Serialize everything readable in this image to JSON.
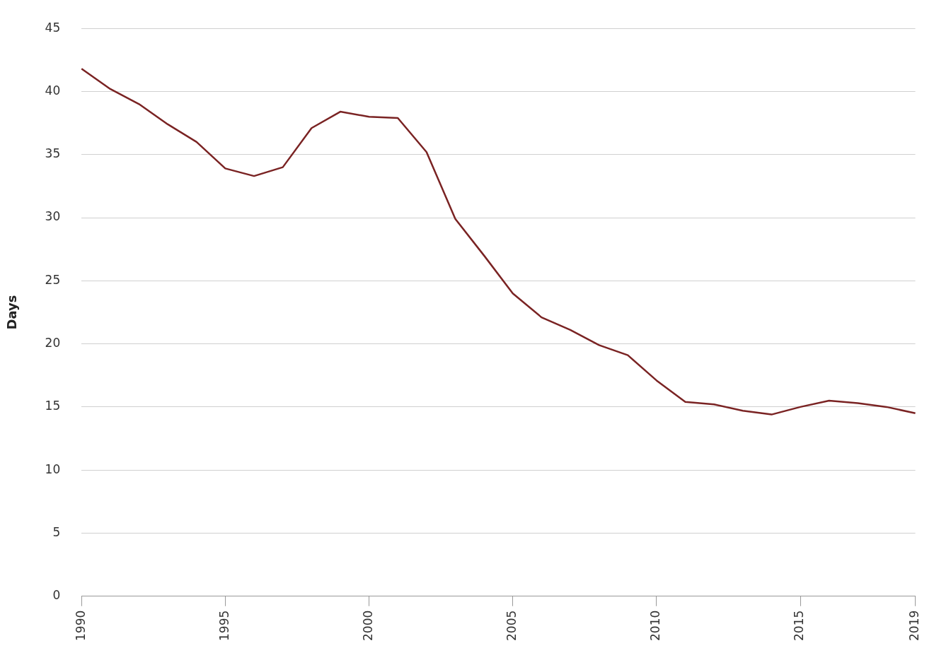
{
  "chart_data": {
    "type": "line",
    "ylabel": "Days",
    "categories": [
      "1990",
      null,
      null,
      null,
      null,
      "1995",
      null,
      null,
      null,
      null,
      "2000",
      null,
      null,
      null,
      null,
      "2005",
      null,
      null,
      null,
      null,
      "2010",
      null,
      null,
      null,
      null,
      "2015",
      null,
      null,
      null,
      "2019"
    ],
    "series": [
      {
        "color": "#7a2323",
        "values": [
          41.8,
          40.2,
          39.0,
          37.4,
          36.0,
          33.9,
          33.3,
          34.0,
          37.1,
          38.4,
          38.0,
          37.9,
          35.2,
          29.9,
          27.0,
          24.0,
          22.1,
          21.1,
          19.9,
          19.1,
          17.1,
          15.4,
          15.2,
          14.7,
          14.4,
          15.0,
          15.5,
          15.3,
          15.0,
          14.5
        ]
      }
    ],
    "ylim": [
      0,
      45
    ],
    "yticks": [
      0,
      5,
      10,
      15,
      20,
      25,
      30,
      35,
      40,
      45
    ],
    "grid": "y",
    "legend": false,
    "marker": "none",
    "line_style": "solid"
  }
}
